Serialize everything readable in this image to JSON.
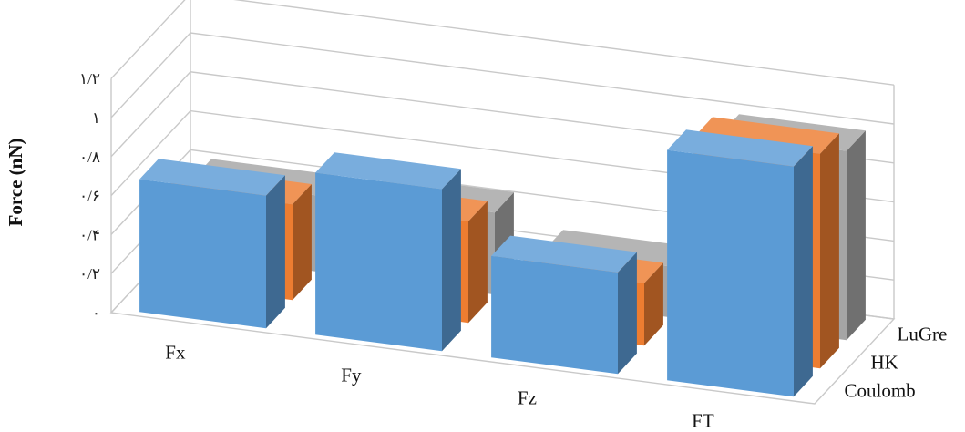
{
  "chart_data": {
    "type": "bar",
    "categories": [
      "Fx",
      "Fy",
      "Fz",
      "FT"
    ],
    "series": [
      {
        "name": "Coulomb",
        "color": "#5b9bd5",
        "values": [
          0.68,
          0.83,
          0.52,
          1.18
        ]
      },
      {
        "name": "HK",
        "color": "#ed7d31",
        "values": [
          0.49,
          0.52,
          0.32,
          1.1
        ]
      },
      {
        "name": "LuGre",
        "color": "#a5a5a5",
        "values": [
          0.39,
          0.42,
          0.26,
          0.97
        ]
      }
    ],
    "ylabel": "Force (nN)",
    "ylim": [
      0,
      1.2
    ],
    "yticks": [
      {
        "value": 0,
        "label": "۰"
      },
      {
        "value": 0.2,
        "label": "۰/۲"
      },
      {
        "value": 0.4,
        "label": "۰/۴"
      },
      {
        "value": 0.6,
        "label": "۰/۶"
      },
      {
        "value": 0.8,
        "label": "۰/۸"
      },
      {
        "value": 1.0,
        "label": "۱"
      },
      {
        "value": 1.2,
        "label": "۱/۲"
      }
    ],
    "grid": true,
    "legend": "none"
  }
}
